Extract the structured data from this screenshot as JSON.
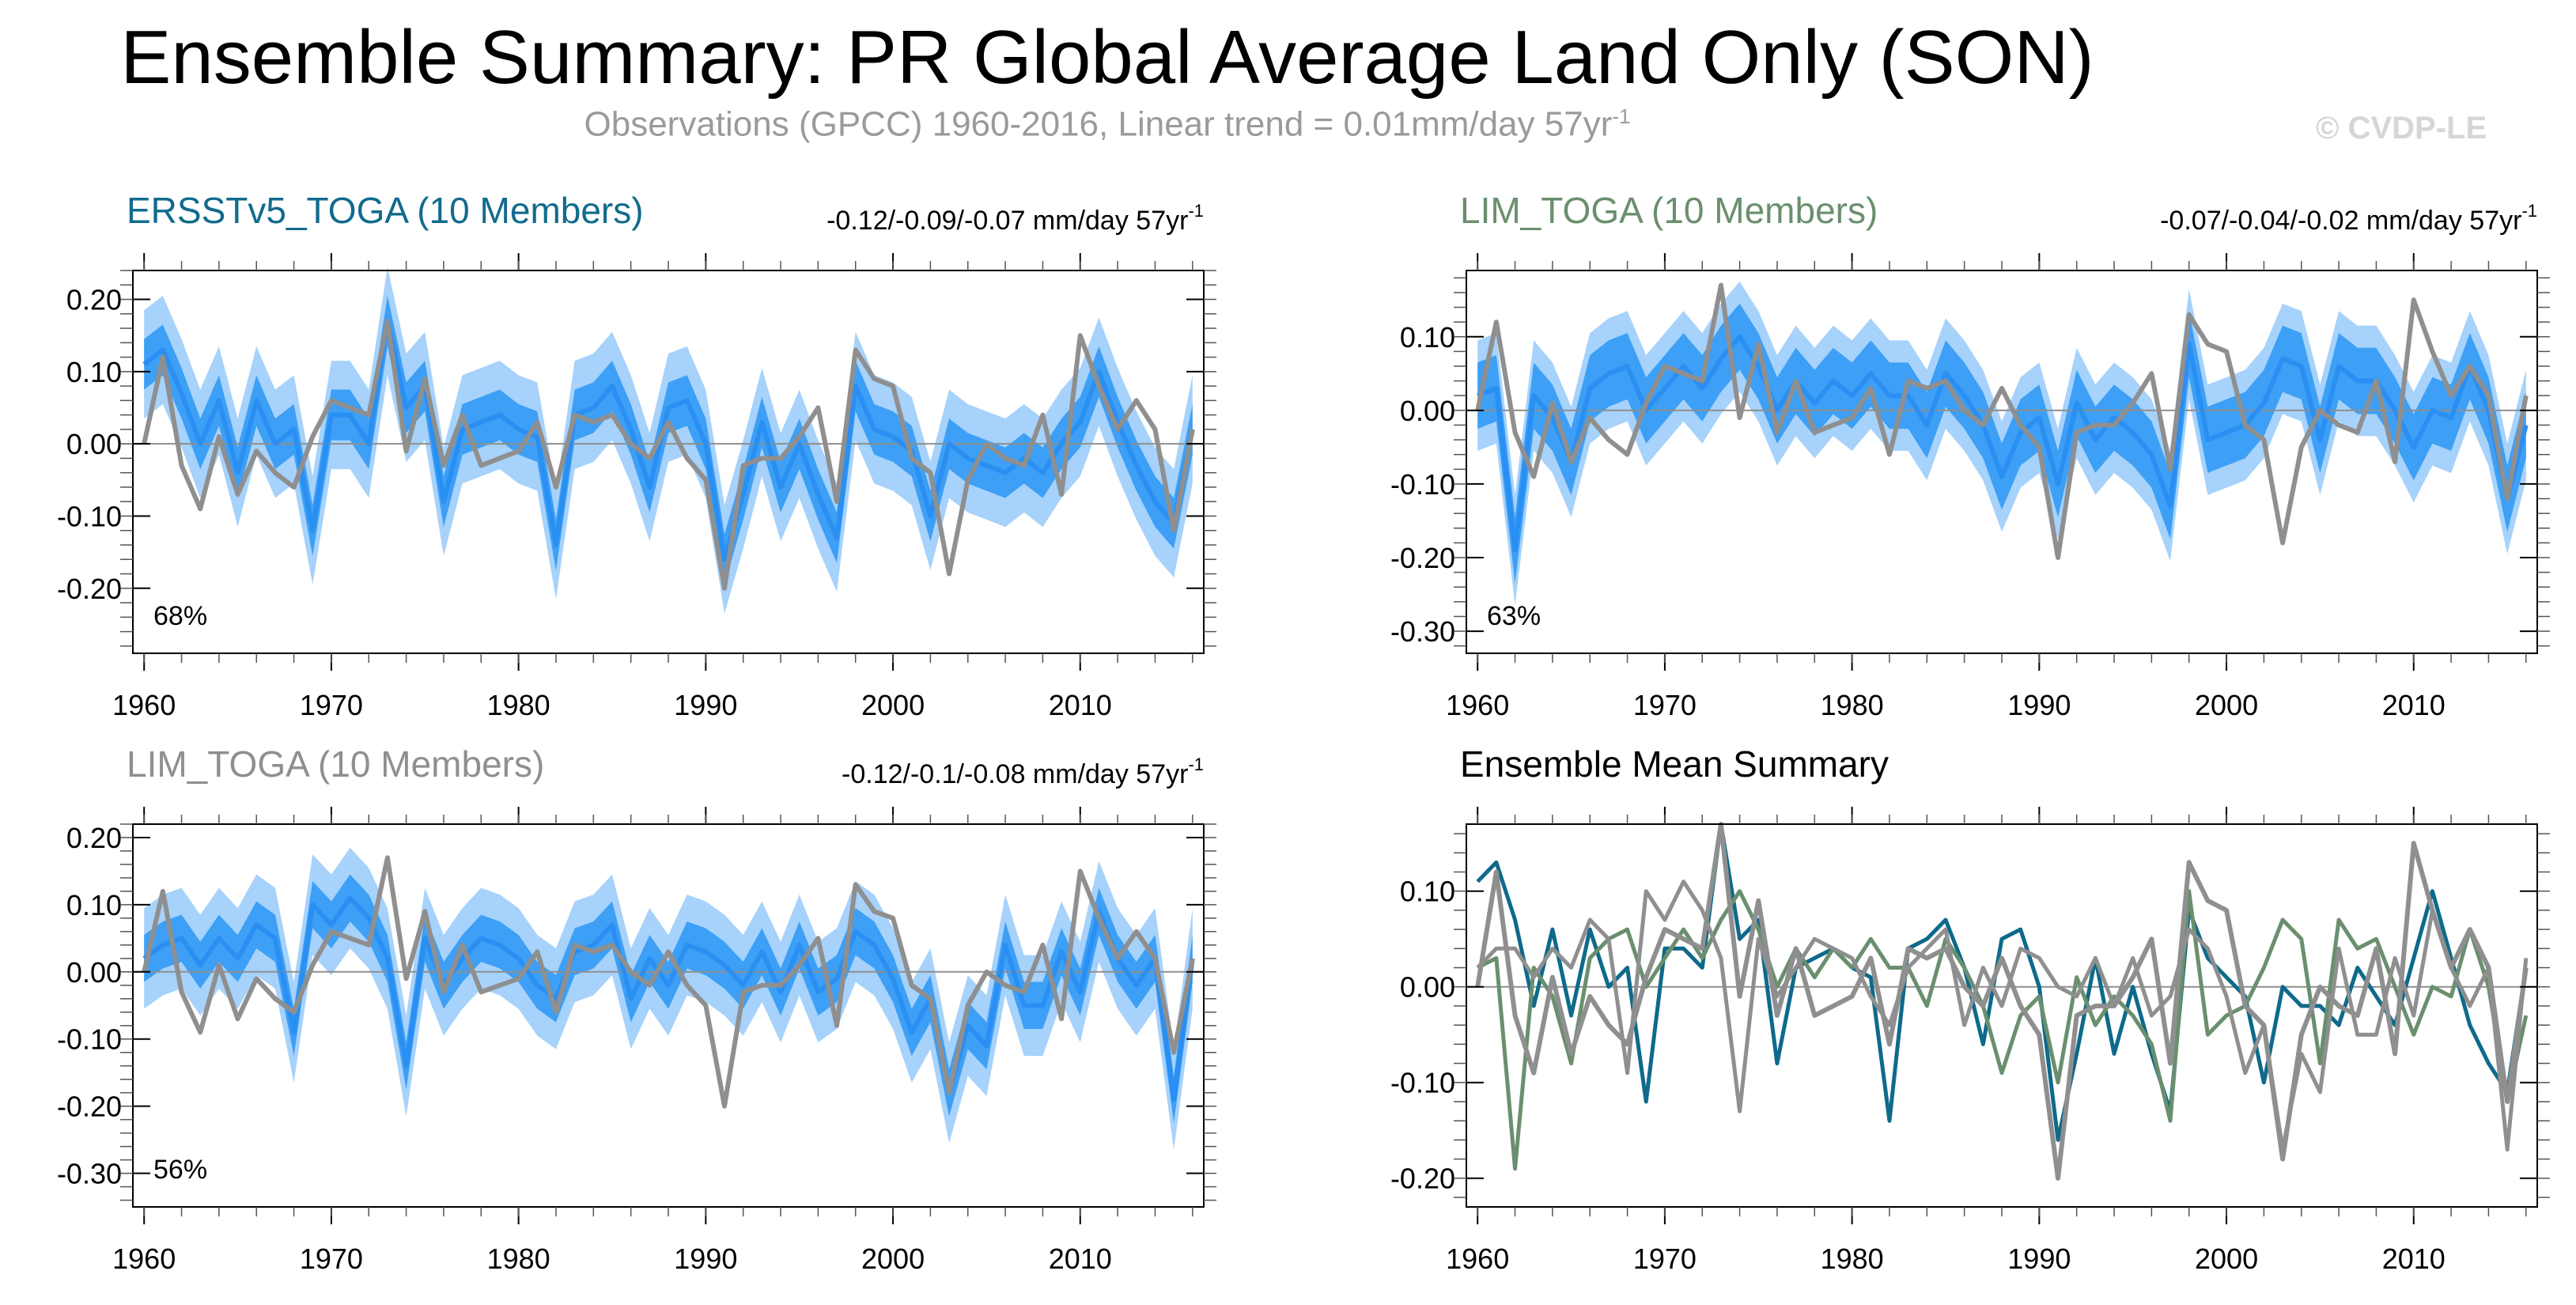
{
  "title": "Ensemble Summary: PR Global Average Land Only (SON)",
  "subtitle": {
    "text": "Observations (GPCC) 1960-2016, Linear trend = 0.01mm/day 57yr",
    "superscript": "-1"
  },
  "watermark": "© CVDP-LE",
  "colors": {
    "ensemble_line": "#2a8ff2",
    "inner_band": "#3d9ff5",
    "outer_band": "#a6d2fb",
    "observation": "#8f8f8f",
    "zero_line": "#8f8f8f",
    "ersst_title": "#116b8c",
    "lim_title": "#6a8f6e",
    "lim_grey_title": "#8f8f8f"
  },
  "years": [
    1960,
    1961,
    1962,
    1963,
    1964,
    1965,
    1966,
    1967,
    1968,
    1969,
    1970,
    1971,
    1972,
    1973,
    1974,
    1975,
    1976,
    1977,
    1978,
    1979,
    1980,
    1981,
    1982,
    1983,
    1984,
    1985,
    1986,
    1987,
    1988,
    1989,
    1990,
    1991,
    1992,
    1993,
    1994,
    1995,
    1996,
    1997,
    1998,
    1999,
    2000,
    2001,
    2002,
    2003,
    2004,
    2005,
    2006,
    2007,
    2008,
    2009,
    2010,
    2011,
    2012,
    2013,
    2014,
    2015,
    2016
  ],
  "observations": [
    0.0,
    0.12,
    -0.03,
    -0.09,
    0.01,
    -0.07,
    -0.01,
    -0.04,
    -0.06,
    0.01,
    0.06,
    0.05,
    0.04,
    0.17,
    -0.01,
    0.09,
    -0.03,
    0.04,
    -0.03,
    -0.02,
    -0.01,
    0.03,
    -0.06,
    0.04,
    0.03,
    0.04,
    0.0,
    -0.02,
    0.03,
    -0.02,
    -0.05,
    -0.2,
    -0.03,
    -0.02,
    -0.02,
    0.01,
    0.05,
    -0.08,
    0.13,
    0.09,
    0.08,
    -0.02,
    -0.04,
    -0.18,
    -0.05,
    0.0,
    -0.02,
    -0.03,
    0.04,
    -0.07,
    0.15,
    0.08,
    0.02,
    0.06,
    0.02,
    -0.12,
    0.02
  ],
  "chart_data": [
    {
      "type": "line",
      "panel": "top-left",
      "title": "ERSSTv5_TOGA (10 Members)",
      "trend_label": "-0.12/-0.09/-0.07 mm/day 57yr",
      "trend_sup": "-1",
      "percent_label": "68%",
      "ylim": [
        -0.29,
        0.24
      ],
      "yticks": [
        -0.2,
        -0.1,
        0.0,
        0.1,
        0.2
      ],
      "ytick_labels": [
        "-0.20",
        "-0.10",
        "0.00",
        "0.10",
        "0.20"
      ],
      "xticks": [
        1960,
        1970,
        1980,
        1990,
        2000,
        2010
      ],
      "xtick_labels": [
        "1960",
        "1970",
        "1980",
        "1990",
        "2000",
        "2010"
      ],
      "series": [
        {
          "name": "Ensemble mean",
          "values": [
            0.11,
            0.13,
            0.07,
            0.0,
            0.06,
            -0.04,
            0.06,
            0.0,
            0.02,
            -0.12,
            0.04,
            0.04,
            0.0,
            0.17,
            0.05,
            0.08,
            -0.08,
            0.02,
            0.03,
            0.04,
            0.02,
            0.01,
            -0.14,
            0.04,
            0.05,
            0.08,
            0.02,
            -0.06,
            0.05,
            0.06,
            0.0,
            -0.16,
            -0.07,
            0.03,
            -0.06,
            0.0,
            -0.07,
            -0.13,
            0.08,
            0.02,
            0.01,
            -0.01,
            -0.1,
            0.0,
            -0.02,
            -0.03,
            -0.04,
            -0.02,
            -0.04,
            0.0,
            0.03,
            0.1,
            0.03,
            -0.03,
            -0.08,
            -0.11,
            0.02
          ]
        },
        {
          "name": "Observations",
          "values": "observations"
        }
      ],
      "inner_band_halfwidth": 0.035,
      "outer_band_halfwidth": 0.075
    },
    {
      "type": "line",
      "panel": "top-right",
      "title": "LIM_TOGA (10 Members)",
      "trend_label": "-0.07/-0.04/-0.02 mm/day 57yr",
      "trend_sup": "-1",
      "percent_label": "63%",
      "ylim": [
        -0.33,
        0.19
      ],
      "yticks": [
        -0.3,
        -0.2,
        -0.1,
        0.0,
        0.1
      ],
      "ytick_labels": [
        "-0.30",
        "-0.20",
        "-0.10",
        "0.00",
        "0.10"
      ],
      "xticks": [
        1960,
        1970,
        1980,
        1990,
        2000,
        2010
      ],
      "xtick_labels": [
        "1960",
        "1970",
        "1980",
        "1990",
        "2000",
        "2010"
      ],
      "series": [
        {
          "name": "Ensemble mean",
          "values": [
            0.02,
            0.03,
            -0.19,
            0.02,
            -0.01,
            -0.07,
            0.03,
            0.05,
            0.06,
            0.0,
            0.03,
            0.06,
            0.03,
            0.07,
            0.1,
            0.06,
            0.0,
            0.04,
            0.01,
            0.04,
            0.02,
            0.05,
            0.02,
            0.02,
            -0.02,
            0.05,
            0.02,
            -0.02,
            -0.09,
            -0.03,
            -0.01,
            -0.1,
            0.01,
            -0.04,
            -0.01,
            -0.03,
            -0.06,
            -0.13,
            0.09,
            -0.04,
            -0.03,
            -0.02,
            0.01,
            0.07,
            0.06,
            -0.04,
            0.06,
            0.04,
            0.04,
            0.0,
            -0.05,
            0.0,
            -0.01,
            0.06,
            0.0,
            -0.12,
            -0.02
          ]
        },
        {
          "name": "Observations",
          "values": "observations"
        }
      ],
      "inner_band_halfwidth": 0.045,
      "outer_band_halfwidth": 0.075
    },
    {
      "type": "line",
      "panel": "bottom-left",
      "title": "LIM_TOGA (10 Members)",
      "trend_label": "-0.12/-0.1/-0.08 mm/day 57yr",
      "trend_sup": "-1",
      "percent_label": "56%",
      "ylim": [
        -0.35,
        0.22
      ],
      "yticks": [
        -0.3,
        -0.2,
        -0.1,
        0.0,
        0.1,
        0.2
      ],
      "ytick_labels": [
        "-0.30",
        "-0.20",
        "-0.10",
        "0.00",
        "0.10",
        "0.20"
      ],
      "xticks": [
        1960,
        1970,
        1980,
        1990,
        2000,
        2010
      ],
      "xtick_labels": [
        "1960",
        "1970",
        "1980",
        "1990",
        "2000",
        "2010"
      ],
      "series": [
        {
          "name": "Ensemble mean",
          "values": [
            0.02,
            0.04,
            0.05,
            0.01,
            0.05,
            0.02,
            0.07,
            0.05,
            -0.09,
            0.1,
            0.07,
            0.11,
            0.08,
            0.02,
            -0.14,
            0.05,
            -0.02,
            0.02,
            0.05,
            0.04,
            0.02,
            -0.02,
            -0.04,
            0.03,
            0.04,
            0.07,
            -0.04,
            0.02,
            -0.02,
            0.04,
            0.03,
            0.01,
            -0.02,
            0.03,
            -0.03,
            0.04,
            -0.03,
            -0.01,
            0.06,
            0.04,
            -0.01,
            -0.09,
            -0.04,
            -0.18,
            -0.08,
            -0.11,
            0.04,
            -0.05,
            -0.05,
            0.03,
            -0.03,
            0.09,
            0.02,
            -0.02,
            0.02,
            -0.19,
            0.02
          ]
        },
        {
          "name": "Observations",
          "values": "observations"
        }
      ],
      "inner_band_halfwidth": 0.035,
      "outer_band_halfwidth": 0.075
    },
    {
      "type": "line",
      "panel": "bottom-right",
      "title": "Ensemble Mean Summary",
      "ylim": [
        -0.23,
        0.17
      ],
      "yticks": [
        -0.2,
        -0.1,
        0.0,
        0.1
      ],
      "ytick_labels": [
        "-0.20",
        "-0.10",
        "0.00",
        "0.10"
      ],
      "xticks": [
        1960,
        1970,
        1980,
        1990,
        2000,
        2010
      ],
      "xtick_labels": [
        "1960",
        "1970",
        "1980",
        "1990",
        "2000",
        "2010"
      ],
      "series": [
        {
          "name": "ERSSTv5_TOGA",
          "color": "#0e6a8a",
          "values": [
            0.11,
            0.13,
            0.07,
            -0.02,
            0.06,
            -0.03,
            0.06,
            0.0,
            0.02,
            -0.12,
            0.04,
            0.04,
            0.02,
            0.17,
            0.05,
            0.07,
            -0.08,
            0.02,
            0.03,
            0.04,
            0.02,
            0.01,
            -0.14,
            0.04,
            0.05,
            0.07,
            0.02,
            -0.06,
            0.05,
            0.06,
            0.0,
            -0.16,
            -0.07,
            0.03,
            -0.07,
            0.0,
            -0.07,
            -0.13,
            0.08,
            0.03,
            0.01,
            -0.01,
            -0.1,
            0.0,
            -0.02,
            -0.02,
            -0.04,
            0.02,
            -0.01,
            -0.04,
            0.03,
            0.1,
            0.03,
            -0.04,
            -0.08,
            -0.11,
            0.02
          ]
        },
        {
          "name": "LIM_TOGA",
          "color": "#6a8f6e",
          "values": [
            0.02,
            0.03,
            -0.19,
            0.02,
            -0.01,
            -0.08,
            0.03,
            0.05,
            0.06,
            0.0,
            0.03,
            0.06,
            0.03,
            0.07,
            0.1,
            0.06,
            0.0,
            0.04,
            0.01,
            0.04,
            0.02,
            0.05,
            0.02,
            0.02,
            -0.02,
            0.05,
            0.02,
            -0.02,
            -0.09,
            -0.03,
            -0.01,
            -0.1,
            0.01,
            -0.04,
            -0.01,
            -0.03,
            -0.06,
            -0.14,
            0.1,
            -0.05,
            -0.03,
            -0.02,
            0.02,
            0.07,
            0.05,
            -0.08,
            0.07,
            0.04,
            0.05,
            0.0,
            -0.05,
            0.0,
            -0.01,
            0.06,
            0.0,
            -0.12,
            -0.03
          ]
        },
        {
          "name": "LIM_TOGA (grey)",
          "color": "#8f8f8f",
          "values": [
            0.02,
            0.04,
            0.04,
            0.01,
            0.04,
            0.02,
            0.07,
            0.05,
            -0.09,
            0.1,
            0.07,
            0.11,
            0.08,
            0.03,
            -0.13,
            0.05,
            -0.01,
            0.02,
            0.05,
            0.04,
            0.03,
            -0.01,
            -0.04,
            0.02,
            0.04,
            0.06,
            -0.04,
            0.02,
            -0.02,
            0.04,
            0.03,
            0.0,
            -0.01,
            0.03,
            -0.02,
            0.03,
            -0.03,
            -0.01,
            0.06,
            0.04,
            -0.01,
            -0.09,
            -0.04,
            -0.17,
            -0.07,
            -0.11,
            0.04,
            -0.05,
            -0.05,
            0.03,
            -0.03,
            0.08,
            0.02,
            -0.02,
            0.02,
            -0.17,
            0.03
          ]
        },
        {
          "name": "Observations",
          "values": "observations"
        }
      ]
    }
  ]
}
